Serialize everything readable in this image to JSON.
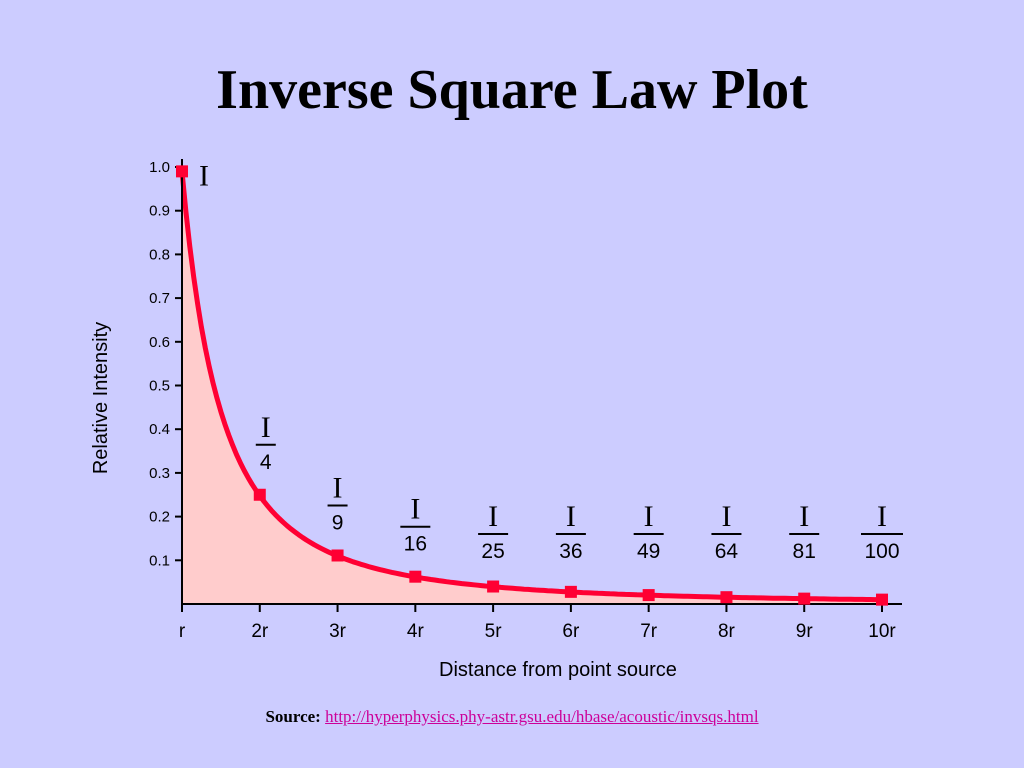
{
  "slide": {
    "title": "Inverse Square Law Plot",
    "source_label": "Source:",
    "source_url": "http://hyperphysics.phy-astr.gsu.edu/hbase/acoustic/invsqs.html"
  },
  "chart_data": {
    "type": "line",
    "title": "",
    "xlabel": "Distance from point source",
    "ylabel": "Relative Intensity",
    "categories": [
      "r",
      "2r",
      "3r",
      "4r",
      "5r",
      "6r",
      "7r",
      "8r",
      "9r",
      "10r"
    ],
    "x": [
      1,
      2,
      3,
      4,
      5,
      6,
      7,
      8,
      9,
      10
    ],
    "xlim": [
      1,
      10
    ],
    "ylim": [
      0,
      1.0
    ],
    "y_ticks": [
      0.1,
      0.2,
      0.3,
      0.4,
      0.5,
      0.6,
      0.7,
      0.8,
      0.9,
      1.0
    ],
    "y_tick_labels": [
      "0.1",
      "0.2",
      "0.3",
      "0.4",
      "0.5",
      "0.6",
      "0.7",
      "0.8",
      "0.9",
      "1.0"
    ],
    "series": [
      {
        "values": [
          0.99,
          0.25,
          0.111,
          0.0625,
          0.04,
          0.0278,
          0.0204,
          0.0156,
          0.0123,
          0.01
        ]
      }
    ],
    "annotations": [
      {
        "x": 1,
        "numerator": "I",
        "denominator": ""
      },
      {
        "x": 2,
        "numerator": "I",
        "denominator": "4"
      },
      {
        "x": 3,
        "numerator": "I",
        "denominator": "9"
      },
      {
        "x": 4,
        "numerator": "I",
        "denominator": "16"
      },
      {
        "x": 5,
        "numerator": "I",
        "denominator": "25"
      },
      {
        "x": 6,
        "numerator": "I",
        "denominator": "36"
      },
      {
        "x": 7,
        "numerator": "I",
        "denominator": "49"
      },
      {
        "x": 8,
        "numerator": "I",
        "denominator": "64"
      },
      {
        "x": 9,
        "numerator": "I",
        "denominator": "81"
      },
      {
        "x": 10,
        "numerator": "I",
        "denominator": "100"
      }
    ],
    "grid": false,
    "colors": {
      "line": "#ff0033",
      "fill": "#ffcccc",
      "marker": "#ff0033"
    }
  }
}
